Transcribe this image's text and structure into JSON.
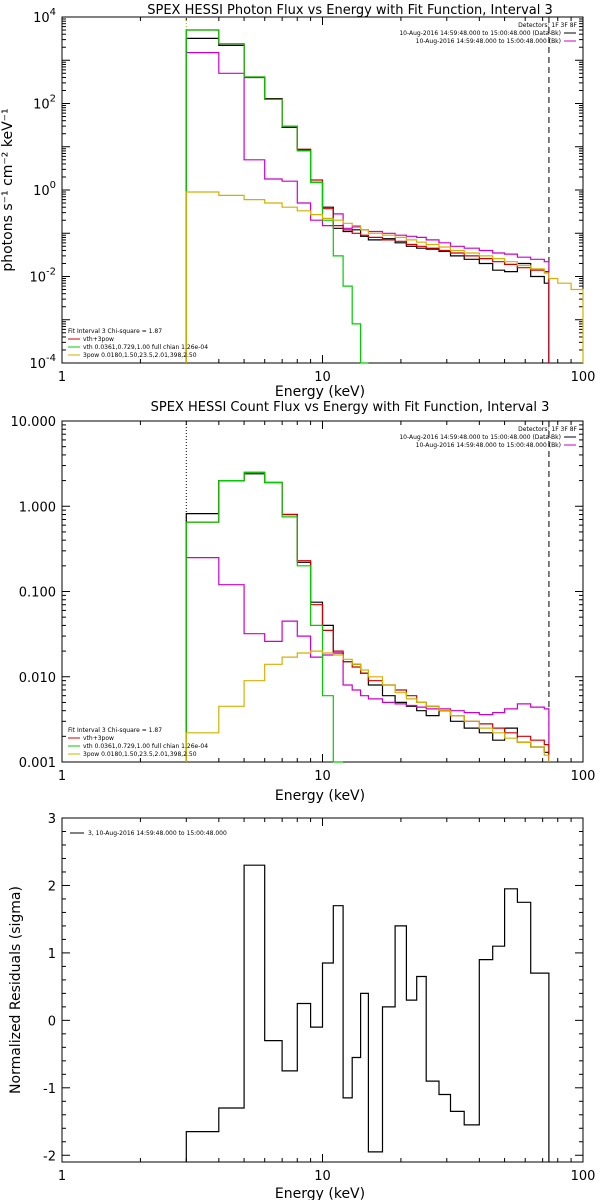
{
  "chart_data": [
    {
      "type": "line",
      "title": "SPEX HESSI Photon Flux vs Energy with Fit Function, Interval 3",
      "xlabel": "Energy (keV)",
      "ylabel": "photons s⁻¹ cm⁻² keV⁻¹",
      "xscale": "log",
      "yscale": "log",
      "xlim": [
        1,
        100
      ],
      "ylim": [
        0.0001,
        10000
      ],
      "x_ticks": [
        {
          "v": 1,
          "label": "1"
        },
        {
          "v": 10,
          "label": "10"
        },
        {
          "v": 100,
          "label": "100"
        }
      ],
      "y_ticks": [
        {
          "v": 0.0001,
          "b": "10",
          "e": "-4"
        },
        {
          "v": 0.01,
          "b": "10",
          "e": "-2"
        },
        {
          "v": 1,
          "b": "10",
          "e": "0"
        },
        {
          "v": 100,
          "b": "10",
          "e": "2"
        },
        {
          "v": 10000,
          "b": "10",
          "e": "4"
        }
      ],
      "legend_header": "Detectors: 1F 3F 8F",
      "legend_top": [
        {
          "text": "10-Aug-2016 14:59:48.000 to 15:00:48.000 (Data-Bk)",
          "color": "#000000"
        },
        {
          "text": "10-Aug-2016 14:59:48.000 to 15:00:48.000 (Bk)",
          "color": "#cc00cc"
        }
      ],
      "fit_text": "Fit Interval 3   Chi-square = 1.87",
      "legend_bottom": [
        {
          "text": "vth+3pow",
          "color": "#cc0000"
        },
        {
          "text": "vth 0.0361,0.729,1.00  full chian 1.26e-04",
          "color": "#00cc00"
        },
        {
          "text": "3pow 0.0180,1.50,23.5,2.01,398,2.50",
          "color": "#d4b000"
        }
      ],
      "vlines": [
        {
          "x": 3,
          "color": "#cc9900",
          "dash": "1,2"
        },
        {
          "x": 74,
          "color": "#000000",
          "dash": "6,4"
        }
      ],
      "series": [
        {
          "name": "Data-Bk",
          "color": "#000000",
          "edges": [
            3,
            4,
            5,
            6,
            7,
            8,
            9,
            10,
            11,
            12,
            13,
            14,
            15,
            17,
            19,
            21,
            23,
            25,
            28,
            31,
            35,
            40,
            45,
            50,
            56,
            63,
            71,
            74
          ],
          "values": [
            3200,
            2200,
            400,
            130,
            28,
            8.5,
            1.5,
            0.4,
            0.13,
            0.11,
            0.12,
            0.085,
            0.07,
            0.075,
            0.06,
            0.05,
            0.045,
            0.043,
            0.038,
            0.03,
            0.025,
            0.02,
            0.014,
            0.013,
            0.02,
            0.01,
            0.007
          ]
        },
        {
          "name": "Bk",
          "color": "#cc00cc",
          "edges": [
            3,
            4,
            5,
            6,
            7,
            8,
            9,
            10,
            11,
            12,
            13,
            14,
            15,
            17,
            19,
            21,
            23,
            25,
            28,
            31,
            35,
            40,
            45,
            50,
            56,
            63,
            71,
            74
          ],
          "values": [
            1500,
            500,
            5,
            1.8,
            1.6,
            0.5,
            0.2,
            0.15,
            0.28,
            0.13,
            0.14,
            0.12,
            0.11,
            0.1,
            0.09,
            0.085,
            0.08,
            0.07,
            0.06,
            0.05,
            0.045,
            0.04,
            0.035,
            0.033,
            0.028,
            0.025,
            0.022
          ]
        },
        {
          "name": "vth+3pow",
          "color": "#cc0000",
          "edges": [
            3,
            4,
            5,
            6,
            7,
            8,
            9,
            10,
            11,
            12,
            13,
            14,
            15,
            17,
            19,
            21,
            23,
            25,
            28,
            31,
            35,
            40,
            45,
            50,
            56,
            63,
            71,
            74
          ],
          "values": [
            5000,
            2400,
            410,
            125,
            30,
            8.8,
            1.7,
            0.37,
            0.15,
            0.12,
            0.1,
            0.09,
            0.08,
            0.07,
            0.065,
            0.055,
            0.05,
            0.045,
            0.04,
            0.035,
            0.03,
            0.026,
            0.022,
            0.019,
            0.016,
            0.014,
            0.013
          ]
        },
        {
          "name": "vth",
          "color": "#00cc00",
          "edges": [
            3,
            4,
            5,
            6,
            7,
            8,
            9,
            10,
            11,
            12,
            13,
            14,
            15
          ],
          "values": [
            5000,
            2400,
            410,
            125,
            30,
            8,
            1.5,
            0.2,
            0.03,
            0.006,
            0.0008,
            0.0001
          ]
        },
        {
          "name": "3pow",
          "color": "#d4b000",
          "edges": [
            3,
            4,
            5,
            6,
            7,
            8,
            9,
            10,
            11,
            12,
            13,
            14,
            15,
            17,
            19,
            21,
            23,
            25,
            28,
            31,
            35,
            40,
            45,
            50,
            56,
            63,
            71,
            74,
            80,
            90,
            100
          ],
          "values": [
            0.9,
            0.75,
            0.6,
            0.5,
            0.4,
            0.33,
            0.27,
            0.22,
            0.2,
            0.17,
            0.15,
            0.12,
            0.1,
            0.09,
            0.08,
            0.07,
            0.062,
            0.055,
            0.048,
            0.04,
            0.035,
            0.03,
            0.026,
            0.022,
            0.018,
            0.015,
            0.012,
            0.009,
            0.007,
            0.005
          ]
        }
      ]
    },
    {
      "type": "line",
      "title": "SPEX HESSI Count Flux vs Energy with Fit Function, Interval 3",
      "xlabel": "Energy (keV)",
      "ylabel": "",
      "xscale": "log",
      "yscale": "log",
      "xlim": [
        1,
        100
      ],
      "ylim": [
        0.001,
        10
      ],
      "x_ticks": [
        {
          "v": 1,
          "label": "1"
        },
        {
          "v": 10,
          "label": "10"
        },
        {
          "v": 100,
          "label": "100"
        }
      ],
      "y_ticks": [
        {
          "v": 0.001,
          "label": "0.001"
        },
        {
          "v": 0.01,
          "label": "0.010"
        },
        {
          "v": 0.1,
          "label": "0.100"
        },
        {
          "v": 1,
          "label": "1.000"
        },
        {
          "v": 10,
          "label": "10.000"
        }
      ],
      "legend_header": "Detectors: 1F 3F 8F",
      "legend_top": [
        {
          "text": "10-Aug-2016 14:59:48.000 to 15:00:48.000 (Data-Bk)",
          "color": "#000000"
        },
        {
          "text": "10-Aug-2016 14:59:48.000 to 15:00:48.000 (Bk)",
          "color": "#cc00cc"
        }
      ],
      "fit_text": "Fit Interval 3   Chi-square = 1.87",
      "legend_bottom": [
        {
          "text": "vth+3pow",
          "color": "#cc0000"
        },
        {
          "text": "vth 0.0361,0.729,1.00  full chian 1.26e-04",
          "color": "#00cc00"
        },
        {
          "text": "3pow 0.0180,1.50,23.5,2.01,398,2.50",
          "color": "#d4b000"
        }
      ],
      "vlines": [
        {
          "x": 3,
          "color": "#000000",
          "dash": "1,2"
        },
        {
          "x": 74,
          "color": "#000000",
          "dash": "6,4"
        }
      ],
      "series": [
        {
          "name": "Data-Bk",
          "color": "#000000",
          "edges": [
            3,
            4,
            5,
            6,
            7,
            8,
            9,
            10,
            11,
            12,
            13,
            14,
            15,
            17,
            19,
            21,
            23,
            25,
            28,
            31,
            35,
            40,
            45,
            50,
            56,
            63,
            71,
            74
          ],
          "values": [
            0.82,
            2.0,
            2.4,
            1.9,
            0.8,
            0.22,
            0.075,
            0.04,
            0.019,
            0.015,
            0.014,
            0.011,
            0.008,
            0.006,
            0.005,
            0.0045,
            0.004,
            0.0035,
            0.004,
            0.003,
            0.0025,
            0.0022,
            0.0018,
            0.0025,
            0.0017,
            0.0015,
            0.0013
          ]
        },
        {
          "name": "Bk",
          "color": "#cc00cc",
          "edges": [
            3,
            4,
            5,
            6,
            7,
            8,
            9,
            10,
            11,
            12,
            13,
            14,
            15,
            17,
            19,
            21,
            23,
            25,
            28,
            31,
            35,
            40,
            45,
            50,
            56,
            63,
            71,
            74
          ],
          "values": [
            0.25,
            0.12,
            0.032,
            0.026,
            0.045,
            0.03,
            0.017,
            0.018,
            0.019,
            0.008,
            0.007,
            0.006,
            0.0055,
            0.005,
            0.0048,
            0.0046,
            0.0044,
            0.0042,
            0.0042,
            0.004,
            0.0038,
            0.0036,
            0.0038,
            0.0042,
            0.0048,
            0.0044,
            0.0042
          ]
        },
        {
          "name": "vth+3pow",
          "color": "#cc0000",
          "edges": [
            3,
            4,
            5,
            6,
            7,
            8,
            9,
            10,
            11,
            12,
            13,
            14,
            15,
            17,
            19,
            21,
            23,
            25,
            28,
            31,
            35,
            40,
            45,
            50,
            56,
            63,
            71,
            74
          ],
          "values": [
            0.65,
            2.0,
            2.5,
            1.9,
            0.8,
            0.23,
            0.07,
            0.035,
            0.02,
            0.015,
            0.013,
            0.011,
            0.009,
            0.008,
            0.007,
            0.006,
            0.005,
            0.0045,
            0.004,
            0.0035,
            0.003,
            0.0028,
            0.0025,
            0.0022,
            0.002,
            0.0018,
            0.0016
          ]
        },
        {
          "name": "vth",
          "color": "#00cc00",
          "edges": [
            3,
            4,
            5,
            6,
            7,
            8,
            9,
            10,
            11,
            12
          ],
          "values": [
            0.65,
            2.0,
            2.5,
            1.9,
            0.75,
            0.2,
            0.04,
            0.006,
            0.001
          ]
        },
        {
          "name": "3pow",
          "color": "#d4b000",
          "edges": [
            3,
            4,
            5,
            6,
            7,
            8,
            9,
            10,
            11,
            12,
            13,
            14,
            15,
            17,
            19,
            21,
            23,
            25,
            28,
            31,
            35,
            40,
            45,
            50,
            56,
            63,
            71,
            74
          ],
          "values": [
            0.0022,
            0.0045,
            0.009,
            0.014,
            0.017,
            0.019,
            0.02,
            0.019,
            0.018,
            0.016,
            0.014,
            0.012,
            0.01,
            0.008,
            0.0065,
            0.0055,
            0.005,
            0.0045,
            0.004,
            0.0035,
            0.003,
            0.0025,
            0.0022,
            0.0019,
            0.0017,
            0.0015,
            0.0012
          ]
        }
      ]
    },
    {
      "type": "line",
      "title": "",
      "xlabel": "Energy (keV)",
      "ylabel": "Normalized Residuals (sigma)",
      "xscale": "log",
      "yscale": "linear",
      "xlim": [
        1,
        100
      ],
      "ylim": [
        -2.1,
        3
      ],
      "x_ticks": [
        {
          "v": 1,
          "label": "1"
        },
        {
          "v": 10,
          "label": "10"
        },
        {
          "v": 100,
          "label": "100"
        }
      ],
      "y_ticks": [
        {
          "v": -2,
          "label": "-2"
        },
        {
          "v": -1,
          "label": "-1"
        },
        {
          "v": 0,
          "label": "0"
        },
        {
          "v": 1,
          "label": "1"
        },
        {
          "v": 2,
          "label": "2"
        },
        {
          "v": 3,
          "label": "3"
        }
      ],
      "legend_top": [
        {
          "text": "3, 10-Aug-2016 14:59:48.000 to 15:00:48.000",
          "color": "#000000"
        }
      ],
      "series": [
        {
          "name": "3, 10-Aug-2016 14:59:48.000 to 15:00:48.000",
          "color": "#000000",
          "edges": [
            3,
            4,
            5,
            6,
            7,
            8,
            9,
            10,
            11,
            12,
            13,
            14,
            15,
            17,
            19,
            21,
            23,
            25,
            28,
            31,
            35,
            40,
            45,
            50,
            56,
            63,
            71,
            74
          ],
          "values": [
            -1.65,
            -1.3,
            2.3,
            -0.3,
            -0.75,
            0.25,
            -0.1,
            0.85,
            1.7,
            -1.15,
            -0.55,
            0.4,
            -1.95,
            0.2,
            1.4,
            0.3,
            0.65,
            -0.9,
            -1.1,
            -1.35,
            -1.55,
            0.9,
            1.1,
            1.95,
            1.75,
            0.7,
            0.7
          ]
        }
      ]
    }
  ]
}
